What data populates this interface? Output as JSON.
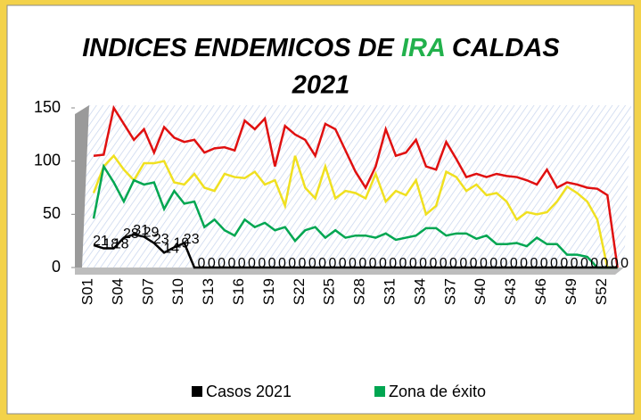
{
  "chart_data": {
    "type": "line",
    "title": {
      "prefix": "INDICES ENDEMICOS DE",
      "highlight": "IRA",
      "suffix": "CALDAS",
      "line2": "2021"
    },
    "categories": [
      "S01",
      null,
      null,
      "S04",
      null,
      null,
      "S07",
      null,
      null,
      "S10",
      null,
      null,
      "S13",
      null,
      null,
      "S16",
      null,
      null,
      "S19",
      null,
      null,
      "S22",
      null,
      null,
      "S25",
      null,
      null,
      "S28",
      null,
      null,
      "S31",
      null,
      null,
      "S34",
      null,
      null,
      "S37",
      null,
      null,
      "S40",
      null,
      null,
      "S43",
      null,
      null,
      "S46",
      null,
      null,
      "S49",
      null,
      null,
      "S52",
      null
    ],
    "ylim": [
      0,
      150
    ],
    "yticks": [
      0,
      50,
      100,
      150
    ],
    "series": [
      {
        "name": "Casos 2021",
        "color": "#000000",
        "labels": true,
        "values": [
          21,
          18,
          18,
          28,
          31,
          29,
          23,
          14,
          19,
          23,
          0,
          0,
          0,
          0,
          0,
          0,
          0,
          0,
          0,
          0,
          0,
          0,
          0,
          0,
          0,
          0,
          0,
          0,
          0,
          0,
          0,
          0,
          0,
          0,
          0,
          0,
          0,
          0,
          0,
          0,
          0,
          0,
          0,
          0,
          0,
          0,
          0,
          0,
          0,
          0,
          0,
          0,
          0
        ]
      },
      {
        "name": "Zona de éxito",
        "color": "#00a651",
        "values": [
          46,
          95,
          80,
          62,
          82,
          78,
          80,
          55,
          72,
          60,
          62,
          38,
          45,
          35,
          30,
          45,
          38,
          42,
          35,
          38,
          25,
          35,
          38,
          28,
          35,
          28,
          30,
          30,
          28,
          32,
          26,
          28,
          30,
          37,
          37,
          30,
          32,
          32,
          27,
          30,
          22,
          22,
          23,
          20,
          28,
          22,
          22,
          12,
          12,
          10,
          0,
          0,
          0
        ]
      },
      {
        "color": "#f0e020",
        "values": [
          70,
          95,
          105,
          92,
          82,
          98,
          98,
          100,
          80,
          78,
          88,
          75,
          72,
          88,
          85,
          84,
          90,
          78,
          82,
          58,
          105,
          75,
          65,
          95,
          65,
          72,
          70,
          65,
          88,
          62,
          72,
          68,
          82,
          50,
          58,
          90,
          85,
          72,
          78,
          68,
          70,
          62,
          45,
          52,
          50,
          52,
          62,
          76,
          70,
          62,
          45,
          0,
          0
        ]
      },
      {
        "color": "#e01010",
        "values": [
          105,
          106,
          150,
          135,
          120,
          130,
          108,
          132,
          122,
          118,
          120,
          108,
          112,
          113,
          110,
          138,
          130,
          140,
          95,
          133,
          125,
          120,
          105,
          135,
          130,
          110,
          90,
          75,
          95,
          130,
          105,
          108,
          120,
          95,
          92,
          118,
          102,
          85,
          88,
          85,
          88,
          86,
          85,
          82,
          78,
          92,
          75,
          80,
          78,
          75,
          74,
          68,
          0
        ]
      }
    ]
  }
}
